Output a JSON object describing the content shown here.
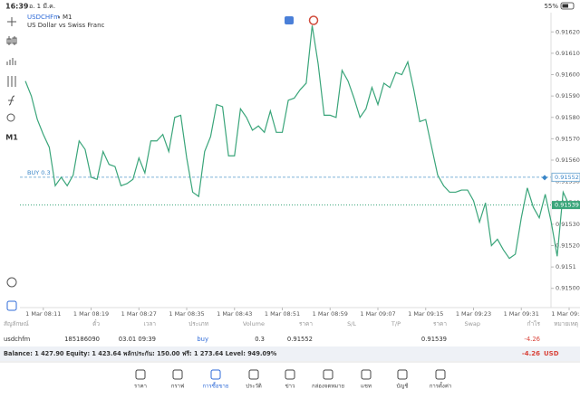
{
  "status_bar": {
    "time": "16:39",
    "date": "อ. 1 มี.ค.",
    "battery": "55%"
  },
  "chart_data": {
    "type": "line",
    "symbol": "USDCHFm",
    "timeframe": "M1",
    "subtitle": "US Dollar vs Swiss Franc",
    "color": "#3aa57a",
    "categories": [
      null,
      null,
      null,
      "1 Mar 08:11",
      null,
      null,
      null,
      null,
      null,
      null,
      null,
      "1 Mar 08:19",
      null,
      null,
      null,
      null,
      null,
      null,
      null,
      "1 Mar 08:27",
      null,
      null,
      null,
      null,
      null,
      null,
      null,
      "1 Mar 08:35",
      null,
      null,
      null,
      null,
      null,
      null,
      null,
      "1 Mar 08:43",
      null,
      null,
      null,
      null,
      null,
      null,
      null,
      "1 Mar 08:51",
      null,
      null,
      null,
      null,
      null,
      null,
      null,
      "1 Mar 08:59",
      null,
      null,
      null,
      null,
      null,
      null,
      null,
      "1 Mar 09:07",
      null,
      null,
      null,
      null,
      null,
      null,
      null,
      "1 Mar 09:15",
      null,
      null,
      null,
      null,
      null,
      null,
      null,
      "1 Mar 09:23",
      null,
      null,
      null,
      null,
      null,
      null,
      null,
      "1 Mar 09:31",
      null,
      null,
      null,
      null,
      null,
      null,
      null,
      "1 Mar 09:39"
    ],
    "values": [
      0.91597,
      0.9159,
      0.91579,
      0.91572,
      0.91566,
      0.91548,
      0.91552,
      0.91548,
      0.91553,
      0.91569,
      0.91565,
      0.91552,
      0.91551,
      0.91564,
      0.91558,
      0.91557,
      0.91548,
      0.91549,
      0.91551,
      0.91561,
      0.91554,
      0.91569,
      0.91569,
      0.91572,
      0.91564,
      0.9158,
      0.91581,
      0.91561,
      0.91545,
      0.91543,
      0.91564,
      0.91571,
      0.91586,
      0.91585,
      0.91562,
      0.91562,
      0.91584,
      0.9158,
      0.91574,
      0.91576,
      0.91573,
      0.91583,
      0.91573,
      0.91573,
      0.91588,
      0.91589,
      0.91593,
      0.91596,
      0.91623,
      0.91605,
      0.91581,
      0.91581,
      0.9158,
      0.91602,
      0.91597,
      0.91589,
      0.9158,
      0.91584,
      0.91594,
      0.91586,
      0.91596,
      0.91594,
      0.91601,
      0.916,
      0.91606,
      0.91593,
      0.91578,
      0.91579,
      0.91566,
      0.91553,
      0.91548,
      0.91545,
      0.91545,
      0.91546,
      0.91546,
      0.91541,
      0.91531,
      0.9154,
      0.9152,
      0.91523,
      0.91518,
      0.91514,
      0.91516,
      0.91533,
      0.91547,
      0.91538,
      0.91533,
      0.91544,
      0.91531,
      0.91515,
      0.91545,
      0.91539
    ],
    "ylim": [
      0.91491,
      0.91629
    ],
    "yticks": [
      {
        "value": 0.915,
        "label": "0.91500"
      },
      0.9151,
      {
        "value": 0.9152,
        "label": "0.91520"
      },
      {
        "value": 0.9153,
        "label": "0.91530"
      },
      {
        "value": 0.9154,
        "label": "0.91540"
      },
      {
        "value": 0.9155,
        "label": "0.91550"
      },
      {
        "value": 0.9156,
        "label": "0.91560"
      },
      {
        "value": 0.9157,
        "label": "0.91570"
      },
      {
        "value": 0.9158,
        "label": "0.91580"
      },
      {
        "value": 0.9159,
        "label": "0.91590"
      },
      {
        "value": 0.916,
        "label": "0.91600"
      },
      {
        "value": 0.9161,
        "label": "0.91610"
      },
      {
        "value": 0.9162,
        "label": "0.91620"
      }
    ],
    "buy_line": {
      "label": "BUY 0.3",
      "value": 0.91552
    },
    "bid": 0.91539
  },
  "positions": {
    "headers": [
      "สัญลักษณ์",
      "ตั๋ว",
      "เวลา",
      "ประเภท",
      "Volume",
      "ราคา",
      "S/L",
      "T/P",
      "ราคา",
      "Swap",
      "กำไร",
      "หมายเหตุ"
    ],
    "rows": [
      [
        "usdchfm",
        "185186090",
        "03.01 09:39",
        "buy",
        "0.3",
        "0.91552",
        null,
        null,
        "0.91539",
        null,
        "-4.26",
        null
      ]
    ],
    "summary": "Balance: 1 427.90 Equity: 1 423.64 พลักประกัน: 150.00 ฟรี: 1 273.64 Level: 949.09%",
    "total": "-4.26",
    "currency": "USD"
  },
  "tabs": [
    "ราคา",
    "กราฟ",
    "การซื้อขาย",
    "ประวัติ",
    "ข่าว",
    "กล่องจดหมาย",
    "แชท",
    "บัญชี",
    "การตั้งค่า"
  ]
}
